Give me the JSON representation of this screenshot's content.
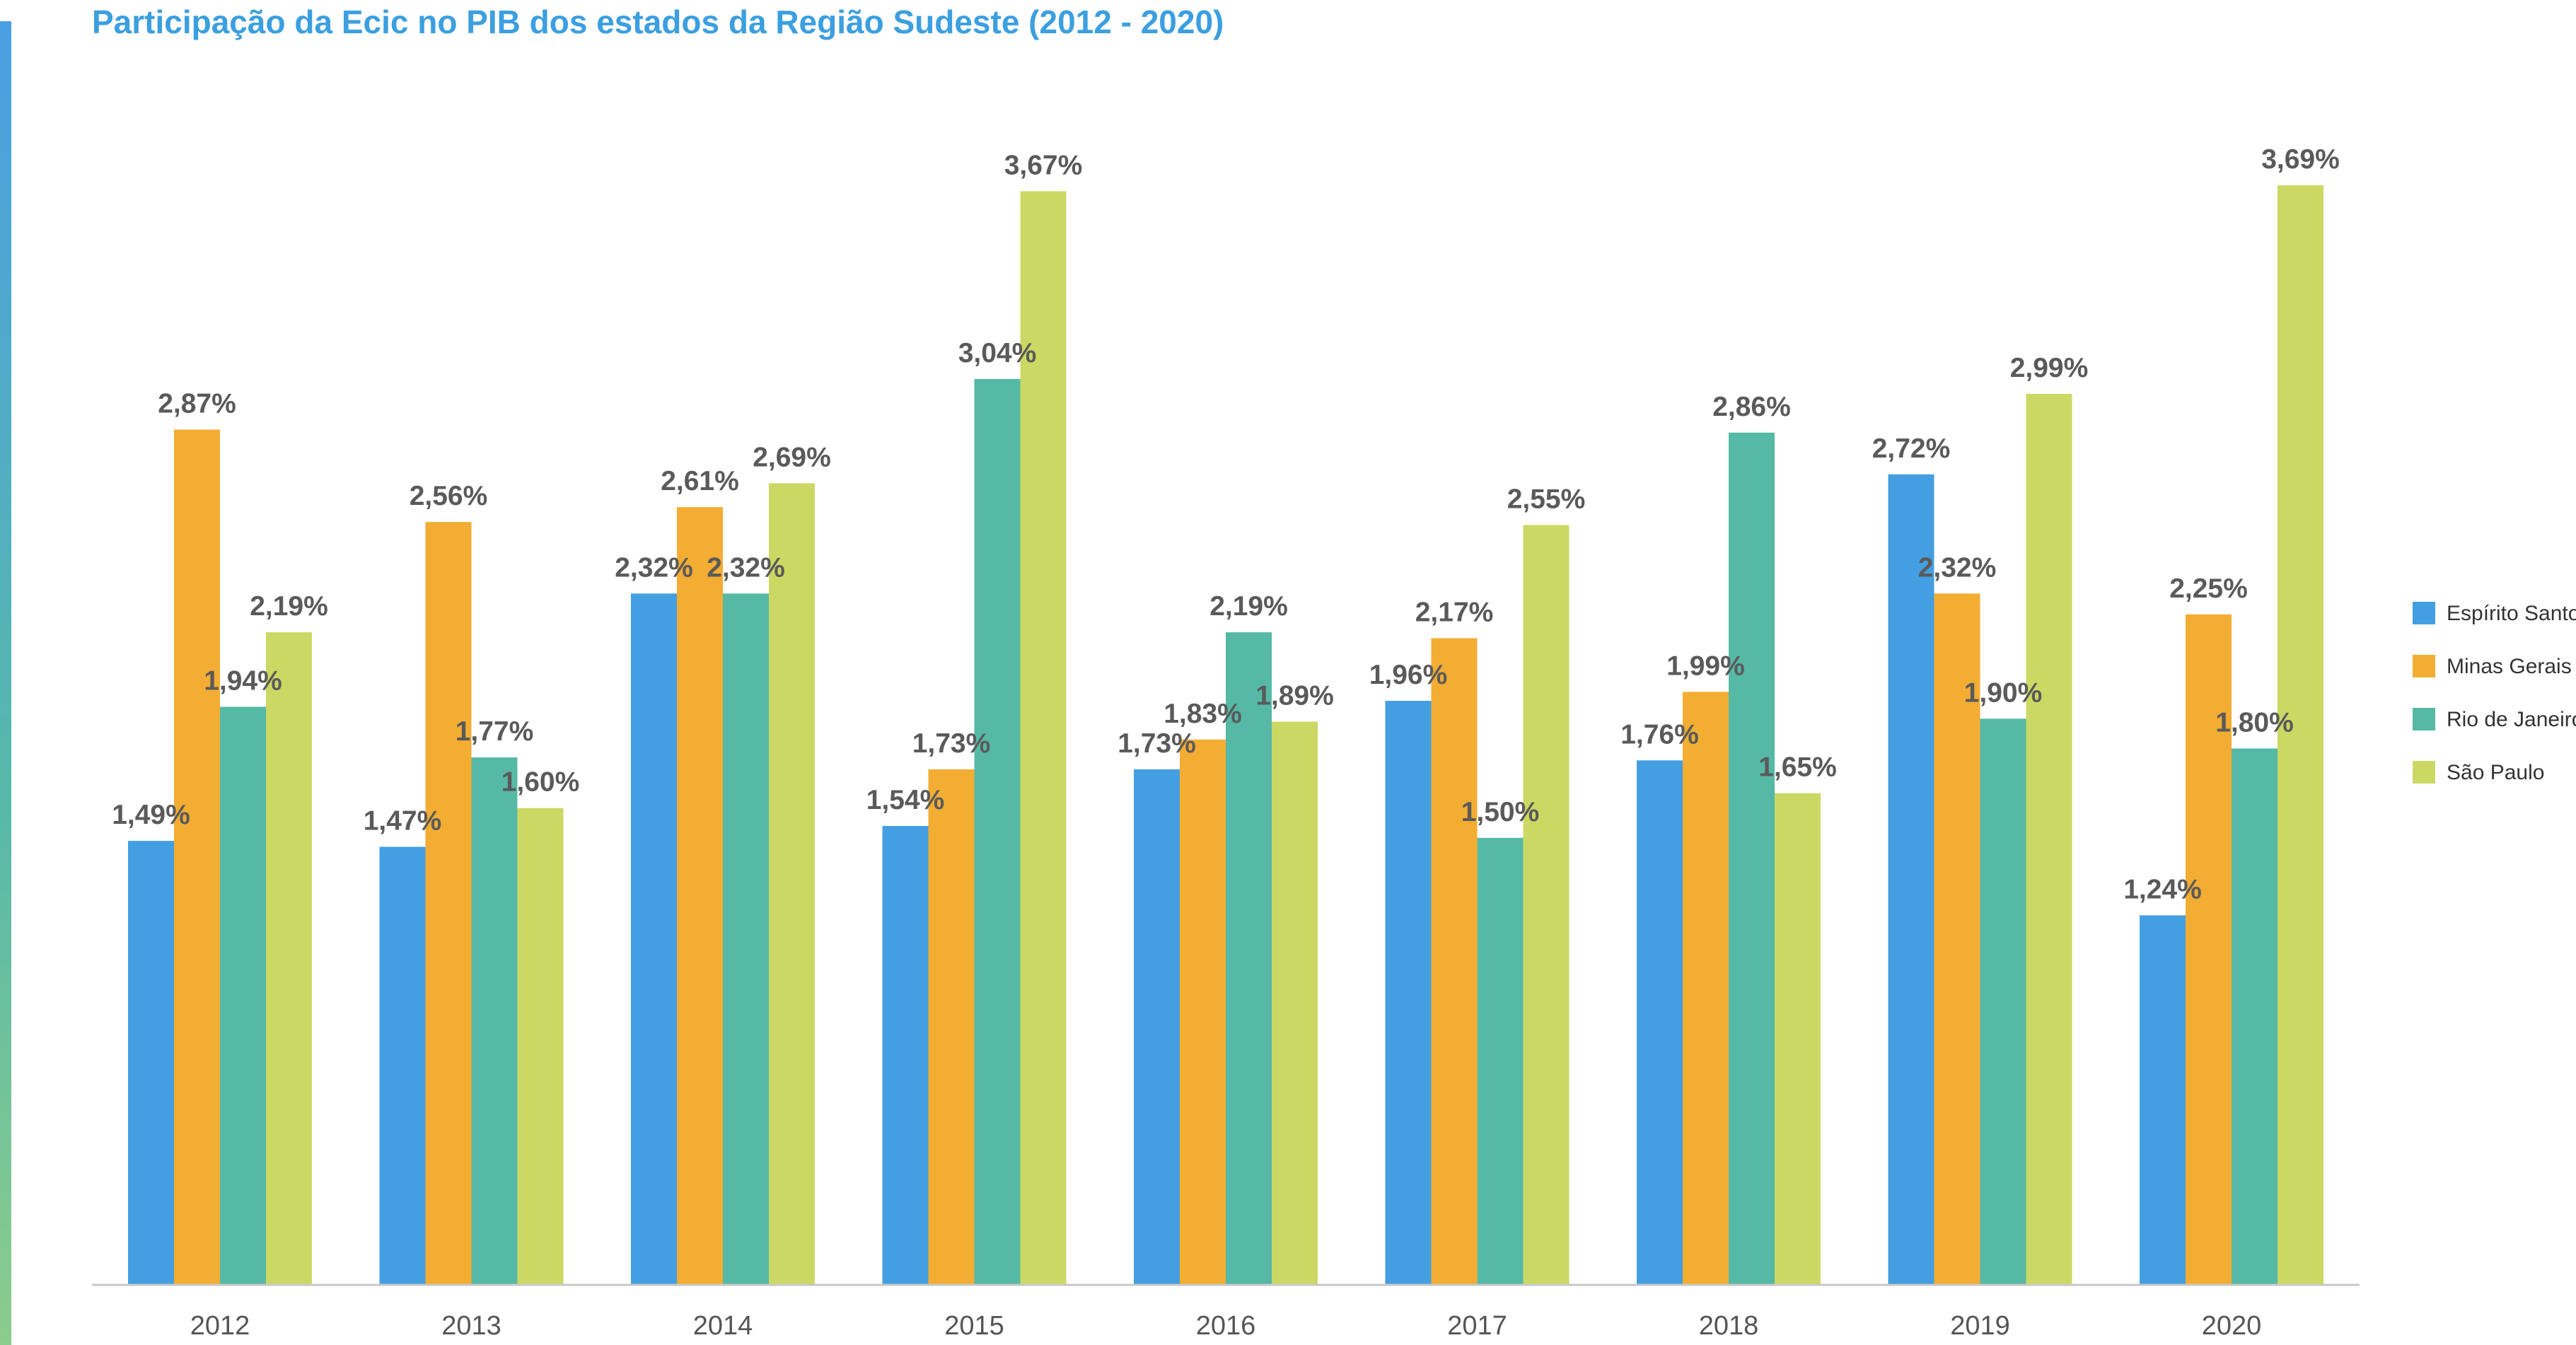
{
  "chart_data": {
    "type": "bar",
    "title": "Participação da Ecic no PIB dos estados da Região Sudeste (2012 - 2020)",
    "xlabel": "",
    "ylabel": "",
    "ylim": [
      0,
      3.69
    ],
    "grid": false,
    "legend_position": "right",
    "categories": [
      "2012",
      "2013",
      "2014",
      "2015",
      "2016",
      "2017",
      "2018",
      "2019",
      "2020"
    ],
    "series": [
      {
        "name": "Espírito Santo",
        "color": "#439fe1",
        "values": [
          1.49,
          1.47,
          2.32,
          1.54,
          1.73,
          1.96,
          1.76,
          2.72,
          1.24
        ],
        "labels": [
          "1,49%",
          "1,47%",
          "2,32%",
          "1,54%",
          "1,73%",
          "1,96%",
          "1,76%",
          "2,72%",
          "1,24%"
        ]
      },
      {
        "name": "Minas Gerais",
        "color": "#f3ad33",
        "values": [
          2.87,
          2.56,
          2.61,
          1.73,
          1.83,
          2.17,
          1.99,
          2.32,
          2.25
        ],
        "labels": [
          "2,87%",
          "2,56%",
          "2,61%",
          "1,73%",
          "1,83%",
          "2,17%",
          "1,99%",
          "2,32%",
          "2,25%"
        ]
      },
      {
        "name": "Rio de Janeiro",
        "color": "#55b9a6",
        "values": [
          1.94,
          1.77,
          2.32,
          3.04,
          2.19,
          1.5,
          2.86,
          1.9,
          1.8
        ],
        "labels": [
          "1,94%",
          "1,77%",
          "2,32%",
          "3,04%",
          "2,19%",
          "1,50%",
          "2,86%",
          "1,90%",
          "1,80%"
        ]
      },
      {
        "name": "São Paulo",
        "color": "#cbd964",
        "values": [
          2.19,
          1.6,
          2.69,
          3.67,
          1.89,
          2.55,
          1.65,
          2.99,
          3.69
        ],
        "labels": [
          "2,19%",
          "1,60%",
          "2,69%",
          "3,67%",
          "1,89%",
          "2,55%",
          "1,65%",
          "2,99%",
          "3,69%"
        ]
      }
    ]
  }
}
